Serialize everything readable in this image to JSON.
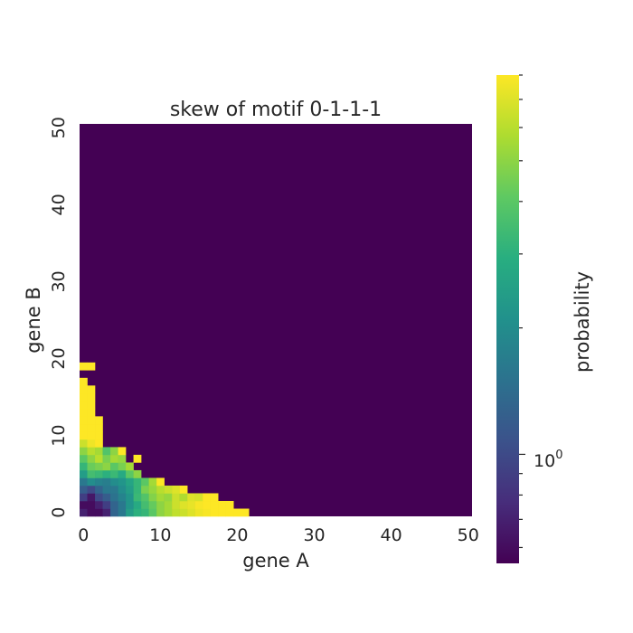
{
  "chart_data": {
    "type": "heatmap",
    "title": "skew of motif  0-1-1-1",
    "xlabel": "gene A",
    "ylabel": "gene B",
    "x_ticks": [
      "0",
      "10",
      "20",
      "30",
      "40",
      "50"
    ],
    "y_ticks": [
      "0",
      "10",
      "20",
      "30",
      "40",
      "50"
    ],
    "xlim": [
      0,
      51
    ],
    "ylim": [
      0,
      51
    ],
    "grid": false,
    "colormap": "viridis",
    "colorbar": {
      "label": "probability",
      "scale": "log",
      "range": [
        0.55,
        8.0
      ],
      "tick_label_base": "10",
      "tick_label_exp": "0",
      "tick_value": 1.0
    },
    "background_value": 0.55,
    "cells": [
      {
        "x": 0,
        "y": 0,
        "v": 0.7
      },
      {
        "x": 1,
        "y": 0,
        "v": 0.6
      },
      {
        "x": 2,
        "y": 0,
        "v": 0.6
      },
      {
        "x": 3,
        "y": 0,
        "v": 0.7
      },
      {
        "x": 4,
        "y": 0,
        "v": 1.3
      },
      {
        "x": 5,
        "y": 0,
        "v": 1.6
      },
      {
        "x": 6,
        "y": 0,
        "v": 2.4
      },
      {
        "x": 7,
        "y": 0,
        "v": 3.0
      },
      {
        "x": 8,
        "y": 0,
        "v": 3.2
      },
      {
        "x": 9,
        "y": 0,
        "v": 4.0
      },
      {
        "x": 10,
        "y": 0,
        "v": 5.0
      },
      {
        "x": 11,
        "y": 0,
        "v": 5.5
      },
      {
        "x": 12,
        "y": 0,
        "v": 6.2
      },
      {
        "x": 13,
        "y": 0,
        "v": 6.5
      },
      {
        "x": 14,
        "y": 0,
        "v": 7.0
      },
      {
        "x": 15,
        "y": 0,
        "v": 7.5
      },
      {
        "x": 16,
        "y": 0,
        "v": 7.8
      },
      {
        "x": 17,
        "y": 0,
        "v": 8.0
      },
      {
        "x": 18,
        "y": 0,
        "v": 8.0
      },
      {
        "x": 19,
        "y": 0,
        "v": 8.0
      },
      {
        "x": 20,
        "y": 0,
        "v": 8.0
      },
      {
        "x": 21,
        "y": 0,
        "v": 8.0
      },
      {
        "x": 0,
        "y": 1,
        "v": 0.6
      },
      {
        "x": 1,
        "y": 1,
        "v": 0.6
      },
      {
        "x": 2,
        "y": 1,
        "v": 0.7
      },
      {
        "x": 3,
        "y": 1,
        "v": 0.9
      },
      {
        "x": 4,
        "y": 1,
        "v": 1.3
      },
      {
        "x": 5,
        "y": 1,
        "v": 1.6
      },
      {
        "x": 6,
        "y": 1,
        "v": 2.2
      },
      {
        "x": 7,
        "y": 1,
        "v": 2.8
      },
      {
        "x": 8,
        "y": 1,
        "v": 3.5
      },
      {
        "x": 9,
        "y": 1,
        "v": 4.2
      },
      {
        "x": 10,
        "y": 1,
        "v": 5.0
      },
      {
        "x": 11,
        "y": 1,
        "v": 5.5
      },
      {
        "x": 12,
        "y": 1,
        "v": 6.5
      },
      {
        "x": 13,
        "y": 1,
        "v": 7.0
      },
      {
        "x": 14,
        "y": 1,
        "v": 7.3
      },
      {
        "x": 15,
        "y": 1,
        "v": 7.8
      },
      {
        "x": 16,
        "y": 1,
        "v": 8.0
      },
      {
        "x": 17,
        "y": 1,
        "v": 8.0
      },
      {
        "x": 18,
        "y": 1,
        "v": 8.0
      },
      {
        "x": 19,
        "y": 1,
        "v": 8.0
      },
      {
        "x": 0,
        "y": 2,
        "v": 0.9
      },
      {
        "x": 1,
        "y": 2,
        "v": 0.65
      },
      {
        "x": 2,
        "y": 2,
        "v": 1.0
      },
      {
        "x": 3,
        "y": 2,
        "v": 1.2
      },
      {
        "x": 4,
        "y": 2,
        "v": 1.5
      },
      {
        "x": 5,
        "y": 2,
        "v": 1.8
      },
      {
        "x": 6,
        "y": 2,
        "v": 2.2
      },
      {
        "x": 7,
        "y": 2,
        "v": 3.3
      },
      {
        "x": 8,
        "y": 2,
        "v": 3.8
      },
      {
        "x": 9,
        "y": 2,
        "v": 4.8
      },
      {
        "x": 10,
        "y": 2,
        "v": 5.5
      },
      {
        "x": 11,
        "y": 2,
        "v": 5.2
      },
      {
        "x": 12,
        "y": 2,
        "v": 6.5
      },
      {
        "x": 13,
        "y": 2,
        "v": 5.8
      },
      {
        "x": 14,
        "y": 2,
        "v": 7.0
      },
      {
        "x": 15,
        "y": 2,
        "v": 6.8
      },
      {
        "x": 16,
        "y": 2,
        "v": 8.0
      },
      {
        "x": 17,
        "y": 2,
        "v": 8.0
      },
      {
        "x": 0,
        "y": 3,
        "v": 1.2
      },
      {
        "x": 1,
        "y": 3,
        "v": 1.0
      },
      {
        "x": 2,
        "y": 3,
        "v": 1.3
      },
      {
        "x": 3,
        "y": 3,
        "v": 1.6
      },
      {
        "x": 4,
        "y": 3,
        "v": 1.6
      },
      {
        "x": 5,
        "y": 3,
        "v": 2.0
      },
      {
        "x": 6,
        "y": 3,
        "v": 2.4
      },
      {
        "x": 7,
        "y": 3,
        "v": 3.2
      },
      {
        "x": 8,
        "y": 3,
        "v": 4.6
      },
      {
        "x": 9,
        "y": 3,
        "v": 5.2
      },
      {
        "x": 10,
        "y": 3,
        "v": 6.0
      },
      {
        "x": 11,
        "y": 3,
        "v": 6.5
      },
      {
        "x": 12,
        "y": 3,
        "v": 7.0
      },
      {
        "x": 13,
        "y": 3,
        "v": 8.0
      },
      {
        "x": 0,
        "y": 4,
        "v": 1.6
      },
      {
        "x": 1,
        "y": 4,
        "v": 2.0
      },
      {
        "x": 2,
        "y": 4,
        "v": 1.8
      },
      {
        "x": 3,
        "y": 4,
        "v": 1.7
      },
      {
        "x": 4,
        "y": 4,
        "v": 2.0
      },
      {
        "x": 5,
        "y": 4,
        "v": 2.2
      },
      {
        "x": 6,
        "y": 4,
        "v": 2.6
      },
      {
        "x": 7,
        "y": 4,
        "v": 3.2
      },
      {
        "x": 8,
        "y": 4,
        "v": 4.0
      },
      {
        "x": 9,
        "y": 4,
        "v": 5.5
      },
      {
        "x": 10,
        "y": 4,
        "v": 8.0
      },
      {
        "x": 0,
        "y": 5,
        "v": 2.4
      },
      {
        "x": 1,
        "y": 5,
        "v": 3.5
      },
      {
        "x": 2,
        "y": 5,
        "v": 3.3
      },
      {
        "x": 3,
        "y": 5,
        "v": 3.0
      },
      {
        "x": 4,
        "y": 5,
        "v": 3.3
      },
      {
        "x": 5,
        "y": 5,
        "v": 2.8
      },
      {
        "x": 6,
        "y": 5,
        "v": 4.0
      },
      {
        "x": 7,
        "y": 5,
        "v": 5.0
      },
      {
        "x": 0,
        "y": 6,
        "v": 3.2
      },
      {
        "x": 1,
        "y": 6,
        "v": 4.3
      },
      {
        "x": 2,
        "y": 6,
        "v": 4.6
      },
      {
        "x": 3,
        "y": 6,
        "v": 5.0
      },
      {
        "x": 4,
        "y": 6,
        "v": 4.0
      },
      {
        "x": 5,
        "y": 6,
        "v": 4.6
      },
      {
        "x": 6,
        "y": 6,
        "v": 5.5
      },
      {
        "x": 0,
        "y": 7,
        "v": 4.0
      },
      {
        "x": 1,
        "y": 7,
        "v": 5.0
      },
      {
        "x": 2,
        "y": 7,
        "v": 6.0
      },
      {
        "x": 3,
        "y": 7,
        "v": 4.6
      },
      {
        "x": 4,
        "y": 7,
        "v": 5.5
      },
      {
        "x": 5,
        "y": 7,
        "v": 5.2
      },
      {
        "x": 7,
        "y": 7,
        "v": 8.0
      },
      {
        "x": 0,
        "y": 8,
        "v": 5.0
      },
      {
        "x": 1,
        "y": 8,
        "v": 6.0
      },
      {
        "x": 2,
        "y": 8,
        "v": 5.5
      },
      {
        "x": 3,
        "y": 8,
        "v": 3.8
      },
      {
        "x": 4,
        "y": 8,
        "v": 5.0
      },
      {
        "x": 5,
        "y": 8,
        "v": 8.0
      },
      {
        "x": 0,
        "y": 9,
        "v": 6.5
      },
      {
        "x": 1,
        "y": 9,
        "v": 7.5
      },
      {
        "x": 2,
        "y": 9,
        "v": 8.0
      },
      {
        "x": 0,
        "y": 10,
        "v": 8.0
      },
      {
        "x": 1,
        "y": 10,
        "v": 8.0
      },
      {
        "x": 2,
        "y": 10,
        "v": 8.0
      },
      {
        "x": 0,
        "y": 11,
        "v": 8.0
      },
      {
        "x": 1,
        "y": 11,
        "v": 8.0
      },
      {
        "x": 2,
        "y": 11,
        "v": 8.0
      },
      {
        "x": 0,
        "y": 12,
        "v": 8.0
      },
      {
        "x": 1,
        "y": 12,
        "v": 8.0
      },
      {
        "x": 2,
        "y": 12,
        "v": 8.0
      },
      {
        "x": 0,
        "y": 13,
        "v": 8.0
      },
      {
        "x": 1,
        "y": 13,
        "v": 8.0
      },
      {
        "x": 0,
        "y": 14,
        "v": 8.0
      },
      {
        "x": 1,
        "y": 14,
        "v": 8.0
      },
      {
        "x": 0,
        "y": 15,
        "v": 8.0
      },
      {
        "x": 1,
        "y": 15,
        "v": 8.0
      },
      {
        "x": 0,
        "y": 16,
        "v": 8.0
      },
      {
        "x": 1,
        "y": 16,
        "v": 8.0
      },
      {
        "x": 0,
        "y": 17,
        "v": 8.0
      },
      {
        "x": 0,
        "y": 19,
        "v": 8.0
      },
      {
        "x": 1,
        "y": 19,
        "v": 8.0
      }
    ]
  }
}
